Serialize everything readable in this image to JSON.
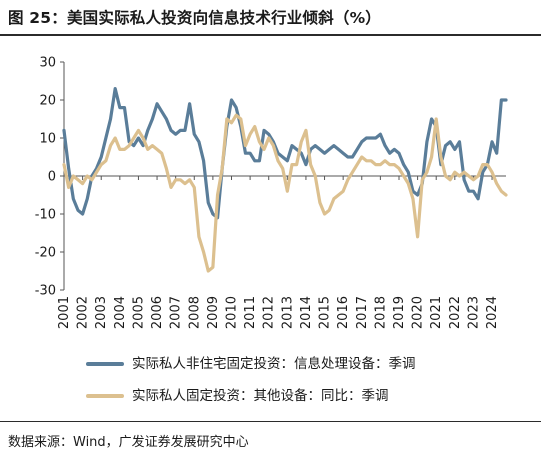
{
  "figure": {
    "title": "图 25：美国实际私人投资向信息技术行业倾斜（%）",
    "source": "数据来源：Wind，广发证券发展研究中心"
  },
  "chart_data": {
    "type": "line",
    "title": "",
    "xlabel": "",
    "ylabel": "",
    "xlim": [
      2001.0,
      2024.75
    ],
    "ylim": [
      -30,
      30
    ],
    "yticks": [
      30,
      20,
      10,
      0,
      -10,
      -20,
      -30
    ],
    "xticks": [
      "2001",
      "2002",
      "2003",
      "2004",
      "2005",
      "2006",
      "2007",
      "2008",
      "2009",
      "2010",
      "2011",
      "2012",
      "2013",
      "2014",
      "2015",
      "2016",
      "2017",
      "2018",
      "2019",
      "2020",
      "2021",
      "2022",
      "2023",
      "2024"
    ],
    "grid": false,
    "legend_position": "bottom",
    "series": [
      {
        "name": "实际私人非住宅固定投资：信息处理设备：季调",
        "color": "#5a7d99",
        "points": [
          [
            2001.0,
            12
          ],
          [
            2001.25,
            2
          ],
          [
            2001.5,
            -6
          ],
          [
            2001.75,
            -9
          ],
          [
            2002.0,
            -10
          ],
          [
            2002.25,
            -6
          ],
          [
            2002.5,
            0
          ],
          [
            2002.75,
            2
          ],
          [
            2003.0,
            5
          ],
          [
            2003.25,
            10
          ],
          [
            2003.5,
            15
          ],
          [
            2003.75,
            23
          ],
          [
            2004.0,
            18
          ],
          [
            2004.25,
            18
          ],
          [
            2004.5,
            9
          ],
          [
            2004.75,
            8
          ],
          [
            2005.0,
            10
          ],
          [
            2005.25,
            8
          ],
          [
            2005.5,
            12
          ],
          [
            2005.75,
            15
          ],
          [
            2006.0,
            19
          ],
          [
            2006.25,
            17
          ],
          [
            2006.5,
            15
          ],
          [
            2006.75,
            12
          ],
          [
            2007.0,
            11
          ],
          [
            2007.25,
            12
          ],
          [
            2007.5,
            12
          ],
          [
            2007.75,
            19
          ],
          [
            2008.0,
            11
          ],
          [
            2008.25,
            9
          ],
          [
            2008.5,
            4
          ],
          [
            2008.75,
            -7
          ],
          [
            2009.0,
            -10
          ],
          [
            2009.25,
            -11
          ],
          [
            2009.5,
            2
          ],
          [
            2009.75,
            13
          ],
          [
            2010.0,
            20
          ],
          [
            2010.25,
            18
          ],
          [
            2010.5,
            13
          ],
          [
            2010.75,
            6
          ],
          [
            2011.0,
            6
          ],
          [
            2011.25,
            4
          ],
          [
            2011.5,
            4
          ],
          [
            2011.75,
            12
          ],
          [
            2012.0,
            11
          ],
          [
            2012.25,
            9
          ],
          [
            2012.5,
            6
          ],
          [
            2012.75,
            5
          ],
          [
            2013.0,
            4
          ],
          [
            2013.25,
            8
          ],
          [
            2013.5,
            7
          ],
          [
            2013.75,
            6
          ],
          [
            2014.0,
            3
          ],
          [
            2014.25,
            7
          ],
          [
            2014.5,
            8
          ],
          [
            2014.75,
            7
          ],
          [
            2015.0,
            6
          ],
          [
            2015.25,
            7
          ],
          [
            2015.5,
            8
          ],
          [
            2015.75,
            7
          ],
          [
            2016.0,
            6
          ],
          [
            2016.25,
            5
          ],
          [
            2016.5,
            5
          ],
          [
            2016.75,
            7
          ],
          [
            2017.0,
            9
          ],
          [
            2017.25,
            10
          ],
          [
            2017.5,
            10
          ],
          [
            2017.75,
            10
          ],
          [
            2018.0,
            11
          ],
          [
            2018.25,
            8
          ],
          [
            2018.5,
            6
          ],
          [
            2018.75,
            7
          ],
          [
            2019.0,
            6
          ],
          [
            2019.25,
            3
          ],
          [
            2019.5,
            1
          ],
          [
            2019.75,
            -4
          ],
          [
            2020.0,
            -5
          ],
          [
            2020.25,
            -2
          ],
          [
            2020.5,
            9
          ],
          [
            2020.75,
            15
          ],
          [
            2021.0,
            13
          ],
          [
            2021.25,
            3
          ],
          [
            2021.5,
            8
          ],
          [
            2021.75,
            9
          ],
          [
            2022.0,
            7
          ],
          [
            2022.25,
            9
          ],
          [
            2022.5,
            -1
          ],
          [
            2022.75,
            -4
          ],
          [
            2023.0,
            -4
          ],
          [
            2023.25,
            -6
          ],
          [
            2023.5,
            1
          ],
          [
            2023.75,
            3
          ],
          [
            2024.0,
            9
          ],
          [
            2024.25,
            6
          ],
          [
            2024.5,
            20
          ],
          [
            2024.75,
            20
          ]
        ]
      },
      {
        "name": "实际私人固定投资：其他设备：同比：季调",
        "color": "#dcc08f",
        "points": [
          [
            2001.0,
            3
          ],
          [
            2001.25,
            -3
          ],
          [
            2001.5,
            0
          ],
          [
            2001.75,
            -1
          ],
          [
            2002.0,
            -2
          ],
          [
            2002.25,
            0
          ],
          [
            2002.5,
            -1
          ],
          [
            2002.75,
            1
          ],
          [
            2003.0,
            3
          ],
          [
            2003.25,
            4
          ],
          [
            2003.5,
            8
          ],
          [
            2003.75,
            10
          ],
          [
            2004.0,
            7
          ],
          [
            2004.25,
            7
          ],
          [
            2004.5,
            8
          ],
          [
            2004.75,
            10
          ],
          [
            2005.0,
            12
          ],
          [
            2005.25,
            10
          ],
          [
            2005.5,
            7
          ],
          [
            2005.75,
            8
          ],
          [
            2006.0,
            7
          ],
          [
            2006.25,
            6
          ],
          [
            2006.5,
            2
          ],
          [
            2006.75,
            -3
          ],
          [
            2007.0,
            -1
          ],
          [
            2007.25,
            -1
          ],
          [
            2007.5,
            -2
          ],
          [
            2007.75,
            -1
          ],
          [
            2008.0,
            -3
          ],
          [
            2008.25,
            -16
          ],
          [
            2008.5,
            -20
          ],
          [
            2008.75,
            -25
          ],
          [
            2009.0,
            -24
          ],
          [
            2009.25,
            -5
          ],
          [
            2009.5,
            2
          ],
          [
            2009.75,
            15
          ],
          [
            2010.0,
            14
          ],
          [
            2010.25,
            16
          ],
          [
            2010.5,
            15
          ],
          [
            2010.75,
            8
          ],
          [
            2011.0,
            11
          ],
          [
            2011.25,
            13
          ],
          [
            2011.5,
            9
          ],
          [
            2011.75,
            7
          ],
          [
            2012.0,
            10
          ],
          [
            2012.25,
            8
          ],
          [
            2012.5,
            4
          ],
          [
            2012.75,
            2
          ],
          [
            2013.0,
            -4
          ],
          [
            2013.25,
            3
          ],
          [
            2013.5,
            3
          ],
          [
            2013.75,
            9
          ],
          [
            2014.0,
            12
          ],
          [
            2014.25,
            3
          ],
          [
            2014.5,
            0
          ],
          [
            2014.75,
            -7
          ],
          [
            2015.0,
            -10
          ],
          [
            2015.25,
            -9
          ],
          [
            2015.5,
            -6
          ],
          [
            2015.75,
            -5
          ],
          [
            2016.0,
            -4
          ],
          [
            2016.25,
            -1
          ],
          [
            2016.5,
            1
          ],
          [
            2016.75,
            3
          ],
          [
            2017.0,
            5
          ],
          [
            2017.25,
            4
          ],
          [
            2017.5,
            4
          ],
          [
            2017.75,
            3
          ],
          [
            2018.0,
            3
          ],
          [
            2018.25,
            4
          ],
          [
            2018.5,
            3
          ],
          [
            2018.75,
            3
          ],
          [
            2019.0,
            2
          ],
          [
            2019.25,
            0
          ],
          [
            2019.5,
            -2
          ],
          [
            2019.75,
            -6
          ],
          [
            2020.0,
            -16
          ],
          [
            2020.25,
            -1
          ],
          [
            2020.5,
            1
          ],
          [
            2020.75,
            5
          ],
          [
            2021.0,
            15
          ],
          [
            2021.25,
            5
          ],
          [
            2021.5,
            0
          ],
          [
            2021.75,
            -1
          ],
          [
            2022.0,
            1
          ],
          [
            2022.25,
            0
          ],
          [
            2022.5,
            1
          ],
          [
            2022.75,
            0
          ],
          [
            2023.0,
            -1
          ],
          [
            2023.25,
            0
          ],
          [
            2023.5,
            3
          ],
          [
            2023.75,
            3
          ],
          [
            2024.0,
            1
          ],
          [
            2024.25,
            -2
          ],
          [
            2024.5,
            -4
          ],
          [
            2024.75,
            -5
          ]
        ]
      }
    ]
  }
}
